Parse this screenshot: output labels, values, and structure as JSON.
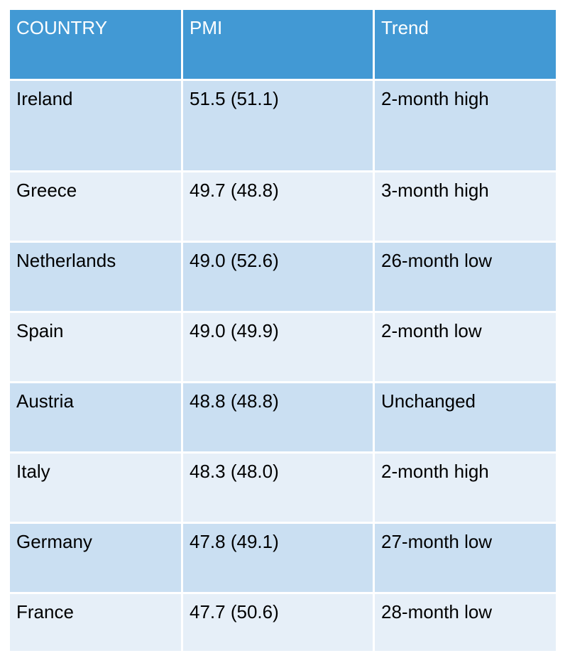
{
  "table": {
    "headers": [
      "COUNTRY",
      "PMI",
      "Trend"
    ],
    "rows": [
      [
        "Ireland",
        "51.5 (51.1)",
        "2-month high"
      ],
      [
        "Greece",
        "49.7 (48.8)",
        "3-month high"
      ],
      [
        "Netherlands",
        "49.0 (52.6)",
        "26-month low"
      ],
      [
        "Spain",
        "49.0 (49.9)",
        "2-month low"
      ],
      [
        "Austria",
        "48.8 (48.8)",
        "Unchanged"
      ],
      [
        "Italy",
        "48.3 (48.0)",
        "2-month high"
      ],
      [
        "Germany",
        "47.8 (49.1)",
        "27-month low"
      ],
      [
        "France",
        "47.7 (50.6)",
        "28-month low"
      ]
    ]
  },
  "colors": {
    "header_bg": "#4299d4",
    "row_dark": "#cadff2",
    "row_light": "#e6eff8",
    "header_text": "#ffffff",
    "body_text": "#000000"
  }
}
